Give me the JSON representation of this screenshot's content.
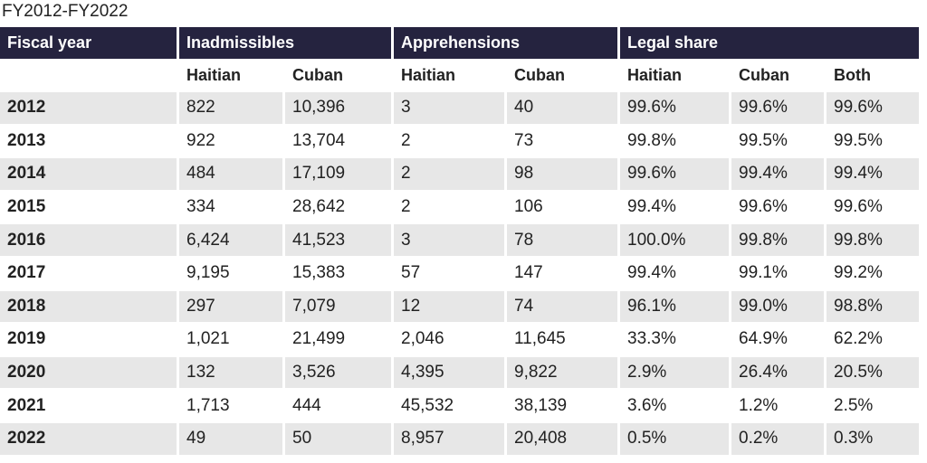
{
  "subtitle": "FY2012-FY2022",
  "table": {
    "groups": [
      "Fiscal year",
      "Inadmissibles",
      "Apprehensions",
      "Legal share"
    ],
    "subheaders": [
      "Haitian",
      "Cuban",
      "Haitian",
      "Cuban",
      "Haitian",
      "Cuban",
      "Both"
    ],
    "rows": [
      [
        "2012",
        "822",
        "10,396",
        "3",
        "40",
        "99.6%",
        "99.6%",
        "99.6%"
      ],
      [
        "2013",
        "922",
        "13,704",
        "2",
        "73",
        "99.8%",
        "99.5%",
        "99.5%"
      ],
      [
        "2014",
        "484",
        "17,109",
        "2",
        "98",
        "99.6%",
        "99.4%",
        "99.4%"
      ],
      [
        "2015",
        "334",
        "28,642",
        "2",
        "106",
        "99.4%",
        "99.6%",
        "99.6%"
      ],
      [
        "2016",
        "6,424",
        "41,523",
        "3",
        "78",
        "100.0%",
        "99.8%",
        "99.8%"
      ],
      [
        "2017",
        "9,195",
        "15,383",
        "57",
        "147",
        "99.4%",
        "99.1%",
        "99.2%"
      ],
      [
        "2018",
        "297",
        "7,079",
        "12",
        "74",
        "96.1%",
        "99.0%",
        "98.8%"
      ],
      [
        "2019",
        "1,021",
        "21,499",
        "2,046",
        "11,645",
        "33.3%",
        "64.9%",
        "62.2%"
      ],
      [
        "2020",
        "132",
        "3,526",
        "4,395",
        "9,822",
        "2.9%",
        "26.4%",
        "20.5%"
      ],
      [
        "2021",
        "1,713",
        "444",
        "45,532",
        "38,139",
        "3.6%",
        "1.2%",
        "2.5%"
      ],
      [
        "2022",
        "49",
        "50",
        "8,957",
        "20,408",
        "0.5%",
        "0.2%",
        "0.3%"
      ]
    ]
  }
}
